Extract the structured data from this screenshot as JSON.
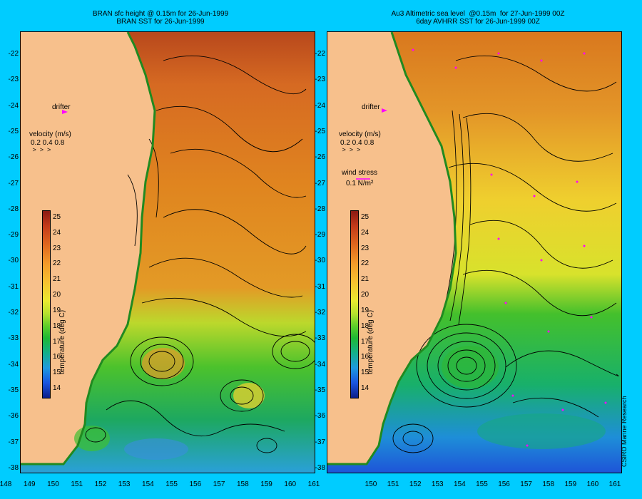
{
  "left": {
    "title_line1": "BRAN sfc height @ 0.15m for 26-Jun-1999",
    "title_line2": "BRAN SST for 26-Jun-1999",
    "drifter_label": "drifter",
    "velocity_label": "velocity (m/s)",
    "velocity_scale": "0.2 0.4 0.8"
  },
  "right": {
    "title_line1": "Au3 Altimetric sea level  @0.15m  for 27-Jun-1999 00Z",
    "title_line2": "6day AVHRR SST for 26-Jun-1999 00Z",
    "drifter_label": "drifter",
    "velocity_label": "velocity (m/s)",
    "velocity_scale": "0.2 0.4 0.8",
    "wind_label": "wind stress",
    "wind_value": "0.1 N/m²"
  },
  "axes": {
    "y_ticks": [
      "-22",
      "-23",
      "-24",
      "-25",
      "-26",
      "-27",
      "-28",
      "-29",
      "-30",
      "-31",
      "-32",
      "-33",
      "-34",
      "-35",
      "-36",
      "-37",
      "-38"
    ],
    "x_ticks_left": [
      "148",
      "149",
      "150",
      "151",
      "152",
      "153",
      "154",
      "155",
      "156",
      "157",
      "158",
      "159",
      "160",
      "161"
    ],
    "x_ticks_right": [
      "150",
      "151",
      "152",
      "153",
      "154",
      "155",
      "156",
      "157",
      "158",
      "159",
      "160",
      "161"
    ]
  },
  "colorbar": {
    "title": "temperature (deg C)",
    "ticks": [
      "25",
      "24",
      "23",
      "22",
      "21",
      "20",
      "19",
      "18",
      "17",
      "16",
      "15",
      "14"
    ],
    "colors": [
      "#8b1a12",
      "#c23a1a",
      "#e0671e",
      "#f39a2a",
      "#f6c130",
      "#eaea30",
      "#b5e22e",
      "#5acd2a",
      "#1fb834",
      "#14b08a",
      "#1e9adf",
      "#1a55e0",
      "#0c1e8a"
    ]
  },
  "credit": "CSIRO Marine Research",
  "colors": {
    "background": "#00ccff",
    "land": "#f7c08c",
    "drifter": "#ff00ff"
  }
}
